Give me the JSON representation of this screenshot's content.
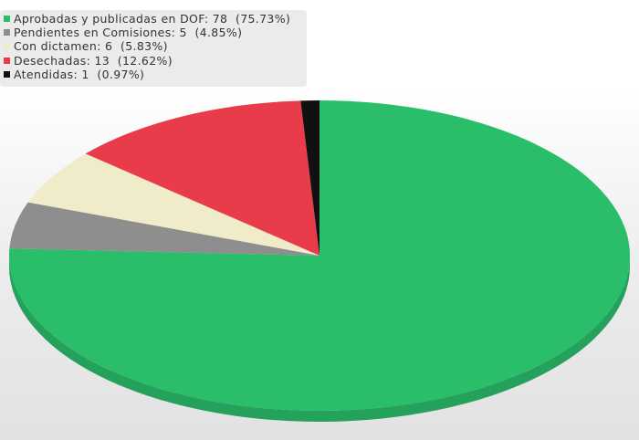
{
  "chart_data": {
    "type": "pie",
    "style": "3d",
    "slices": [
      {
        "label": "Aprobadas y publicadas en DOF:",
        "value": 78,
        "percent": "(75.73%)",
        "color": "#2abd6a"
      },
      {
        "label": "Pendientes en Comisiones:",
        "value": 5,
        "percent": "(4.85%)",
        "color": "#8e8e8e"
      },
      {
        "label": "Con dictamen:",
        "value": 6,
        "percent": "(5.83%)",
        "color": "#f0ecc9"
      },
      {
        "label": "Desechadas:",
        "value": 13,
        "percent": "(12.62%)",
        "color": "#e83c4a"
      },
      {
        "label": "Atendidas:",
        "value": 1,
        "percent": "(0.97%)",
        "color": "#111111"
      }
    ],
    "legend_placement": "top-left"
  }
}
